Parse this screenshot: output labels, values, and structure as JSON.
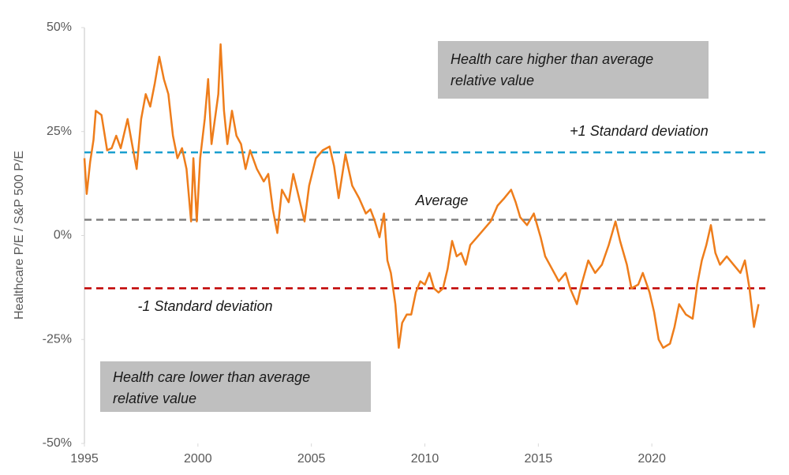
{
  "chart_data": {
    "type": "line",
    "y_label": "Healthcare P/E / S&P 500 P/E",
    "xlim": [
      1995,
      2025
    ],
    "xticks": [
      1995,
      2000,
      2005,
      2010,
      2015,
      2020
    ],
    "ylim": [
      -50,
      50
    ],
    "yticks": [
      {
        "value": 50,
        "label": "50%"
      },
      {
        "value": 25,
        "label": "25%"
      },
      {
        "value": 0,
        "label": "0%"
      },
      {
        "value": -25,
        "label": "-25%"
      },
      {
        "value": -50,
        "label": "-50%"
      }
    ],
    "x": [
      1995.0,
      1995.1,
      1995.25,
      1995.4,
      1995.5,
      1995.75,
      1996.0,
      1996.2,
      1996.4,
      1996.6,
      1996.9,
      1997.1,
      1997.3,
      1997.5,
      1997.7,
      1997.9,
      1998.1,
      1998.3,
      1998.5,
      1998.7,
      1998.9,
      1999.1,
      1999.3,
      1999.5,
      1999.7,
      1999.8,
      1999.95,
      2000.1,
      2000.3,
      2000.45,
      2000.6,
      2000.9,
      2001.0,
      2001.15,
      2001.3,
      2001.5,
      2001.7,
      2001.9,
      2002.1,
      2002.3,
      2002.6,
      2002.9,
      2003.1,
      2003.3,
      2003.5,
      2003.7,
      2004.0,
      2004.2,
      2004.5,
      2004.7,
      2004.9,
      2005.2,
      2005.5,
      2005.8,
      2006.0,
      2006.2,
      2006.5,
      2006.8,
      2007.1,
      2007.4,
      2007.6,
      2007.8,
      2008.0,
      2008.2,
      2008.35,
      2008.5,
      2008.7,
      2008.85,
      2009.0,
      2009.2,
      2009.4,
      2009.6,
      2009.8,
      2010.0,
      2010.2,
      2010.4,
      2010.6,
      2010.8,
      2011.0,
      2011.2,
      2011.4,
      2011.6,
      2011.8,
      2012.0,
      2012.3,
      2012.6,
      2012.9,
      2013.2,
      2013.5,
      2013.8,
      2014.0,
      2014.2,
      2014.5,
      2014.8,
      2015.1,
      2015.3,
      2015.6,
      2015.9,
      2016.2,
      2016.4,
      2016.7,
      2016.9,
      2017.2,
      2017.5,
      2017.8,
      2018.1,
      2018.4,
      2018.6,
      2018.9,
      2019.1,
      2019.4,
      2019.6,
      2019.9,
      2020.1,
      2020.3,
      2020.5,
      2020.8,
      2021.0,
      2021.2,
      2021.5,
      2021.8,
      2022.0,
      2022.2,
      2022.4,
      2022.6,
      2022.8,
      2023.0,
      2023.3,
      2023.6,
      2023.9,
      2024.1,
      2024.3,
      2024.5,
      2024.7
    ],
    "series": [
      {
        "color": "#ee7d1b",
        "values": [
          18.6,
          10,
          17.6,
          23,
          30,
          29,
          20.5,
          21,
          24,
          21,
          28,
          22,
          16,
          28,
          34,
          31,
          36.6,
          43,
          37.6,
          34,
          24,
          18.6,
          21,
          16,
          3.4,
          18.6,
          3.4,
          18.6,
          28,
          37.6,
          22,
          34,
          46,
          30,
          22,
          30,
          24,
          22,
          16,
          20.5,
          16,
          13,
          14.8,
          6.3,
          0.6,
          11,
          8,
          14.8,
          8,
          3.4,
          12,
          18.6,
          20.5,
          21.4,
          16.7,
          9,
          19.5,
          12,
          9,
          5.3,
          6.3,
          3.4,
          -0.4,
          5.3,
          -6,
          -9,
          -16.5,
          -27,
          -21,
          -19,
          -19,
          -13.7,
          -11,
          -11.8,
          -9,
          -12.7,
          -13.7,
          -12.7,
          -8,
          -1.3,
          -5,
          -4.2,
          -7,
          -2.3,
          -0.4,
          1.5,
          3.4,
          7.2,
          9,
          11,
          8,
          4.4,
          2.5,
          5.3,
          -0.4,
          -5,
          -8,
          -11,
          -9,
          -12.7,
          -16.5,
          -11.8,
          -6,
          -9,
          -7,
          -2.3,
          3.4,
          -1.3,
          -7,
          -12.7,
          -11.8,
          -9,
          -13.7,
          -18.4,
          -25,
          -27,
          -26,
          -22,
          -16.5,
          -19,
          -20,
          -11.8,
          -6,
          -2.3,
          2.5,
          -4.2,
          -7,
          -5,
          -7,
          -9,
          -6,
          -12.7,
          -22,
          -16.5
        ]
      }
    ],
    "reference_lines": [
      {
        "label": "+1 Standard deviation",
        "value": 20,
        "color": "#1a9fcf"
      },
      {
        "label": "Average",
        "value": 3.8,
        "color": "#7f7f7f"
      },
      {
        "label": "-1 Standard deviation",
        "value": -12.7,
        "color": "#c00000"
      }
    ],
    "annotations": [
      "Health care higher than average relative value",
      "Health care lower than average relative value"
    ]
  }
}
